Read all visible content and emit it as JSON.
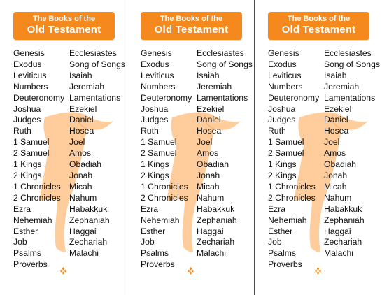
{
  "banner": {
    "line1": "The Books of the",
    "line2": "Old Testament"
  },
  "colors": {
    "accent": "#f5891e",
    "scroll": "#ffc992",
    "ornament": "#f5891e"
  },
  "icons": {
    "scroll": "scroll-icon",
    "ornament": "diamond-flower-icon"
  },
  "books_left": [
    "Genesis",
    "Exodus",
    "Leviticus",
    "Numbers",
    "Deuteronomy",
    "Joshua",
    "Judges",
    "Ruth",
    "1 Samuel",
    "2 Samuel",
    "1 Kings",
    "2 Kings",
    "1 Chronicles",
    "2 Chronicles",
    "Ezra",
    "Nehemiah",
    "Esther",
    "Job",
    "Psalms",
    "Proverbs"
  ],
  "books_right": [
    "Ecclesiastes",
    "Song of Songs",
    "Isaiah",
    "Jeremiah",
    "Lamentations",
    "Ezekiel",
    "Daniel",
    "Hosea",
    "Joel",
    "Amos",
    "Obadiah",
    "Jonah",
    "Micah",
    "Nahum",
    "Habakkuk",
    "Zephaniah",
    "Haggai",
    "Zechariah",
    "Malachi"
  ]
}
